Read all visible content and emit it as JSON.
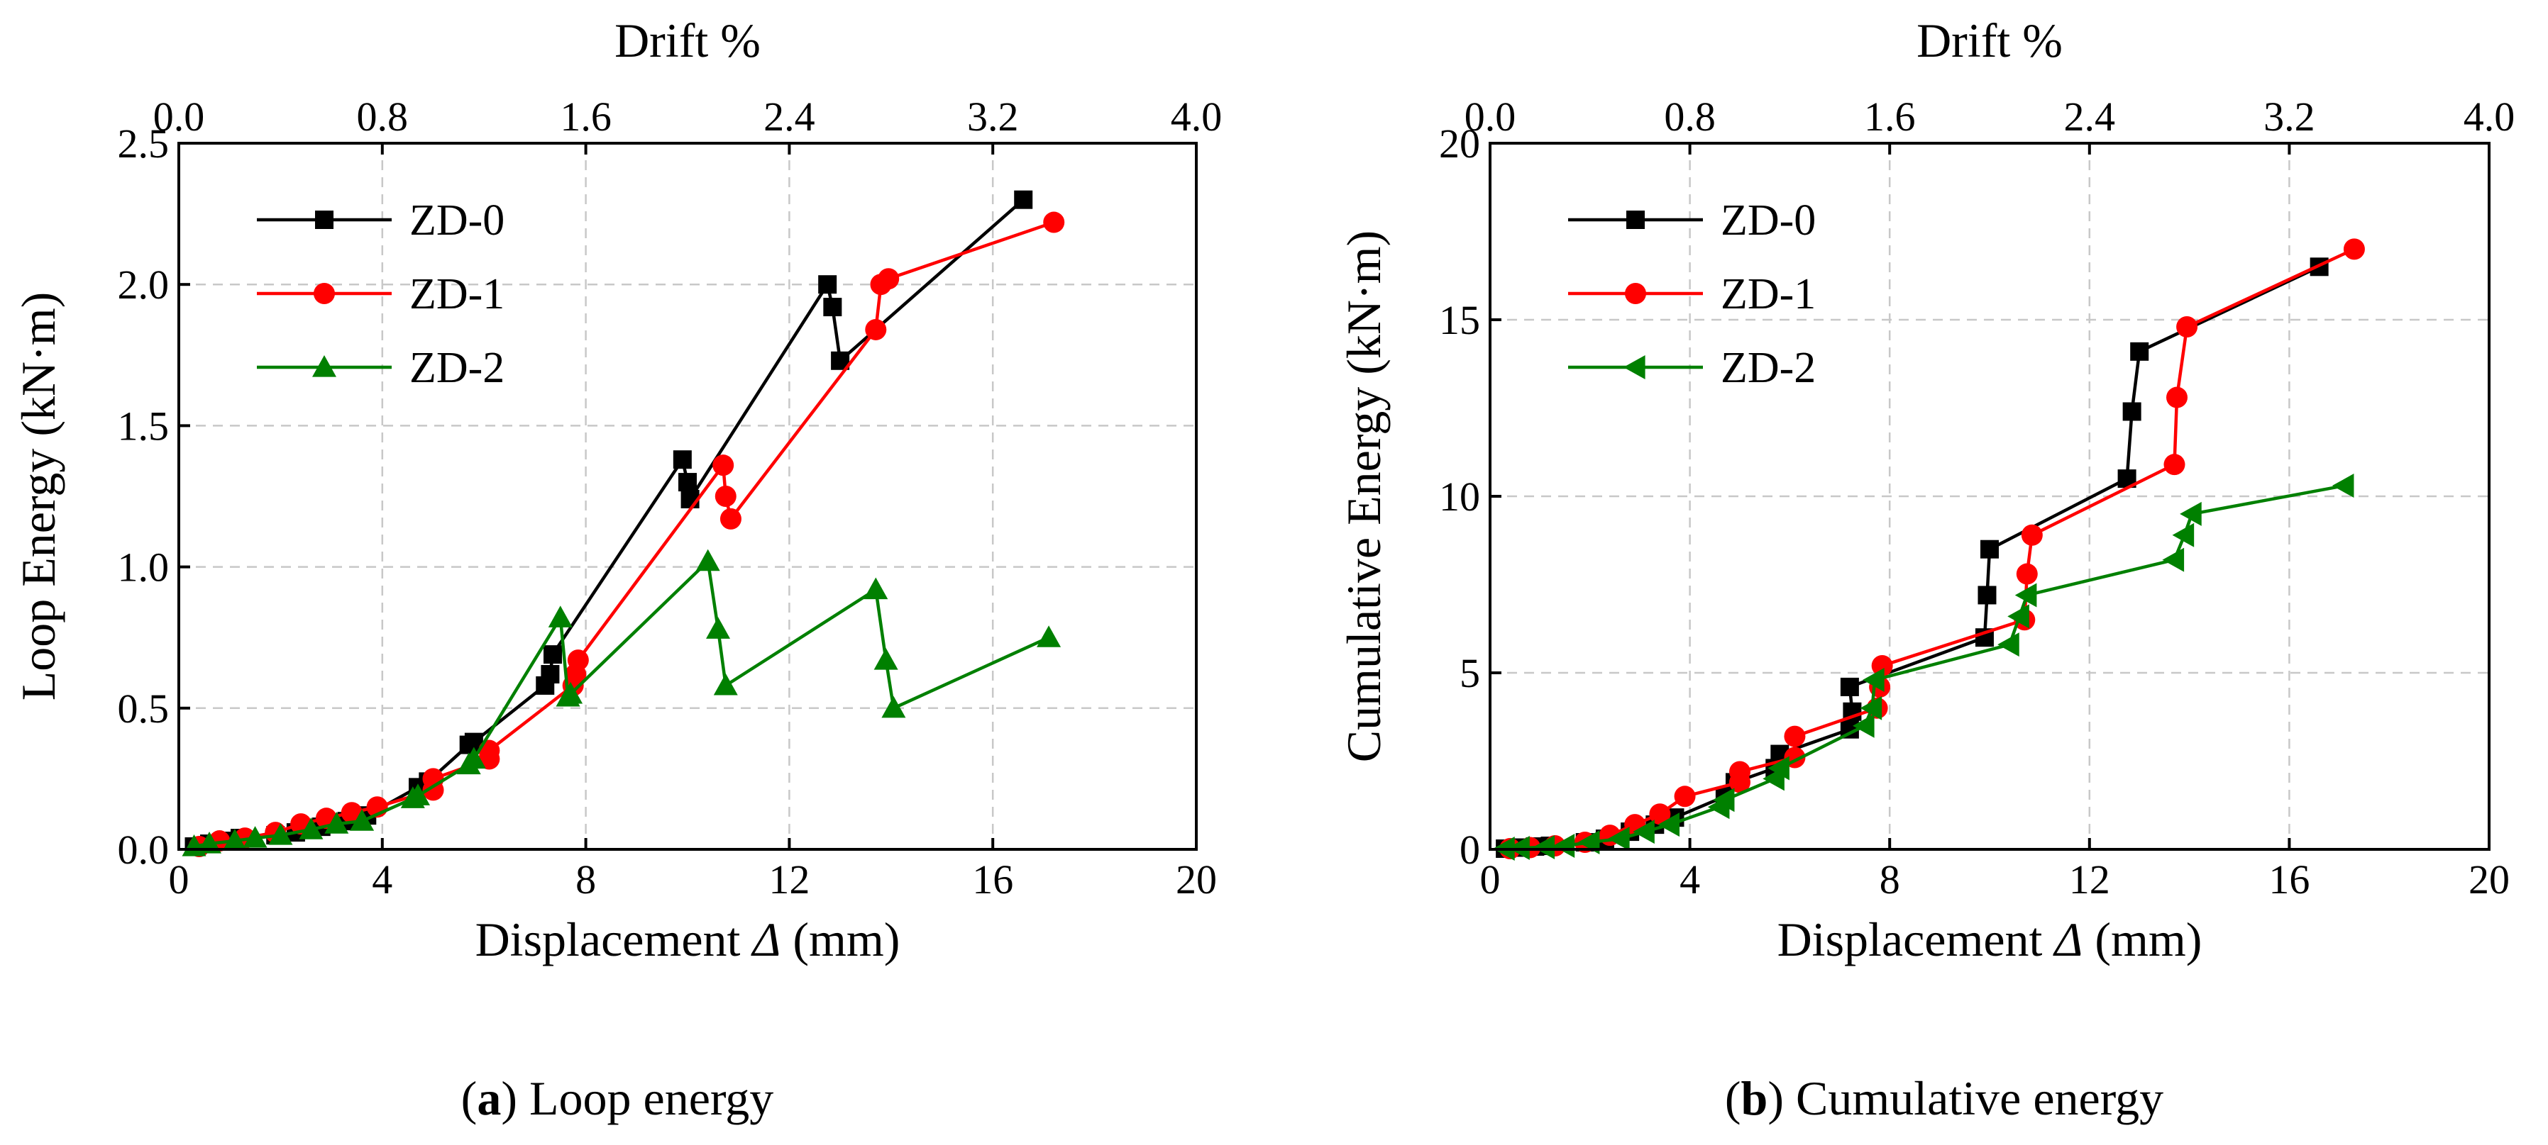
{
  "chart_data": [
    {
      "type": "line",
      "id": "loop",
      "caption_letter": "a",
      "caption_text": " Loop energy",
      "xlabel_main": "Displacement ",
      "xlabel_sym": "Δ",
      "xlabel_unit": " (mm)",
      "ylabel": "Loop Energy (kN·m)",
      "x2label": "Drift %",
      "xlim": [
        0,
        20
      ],
      "ylim": [
        0,
        2.5
      ],
      "x2lim": [
        0,
        4.0
      ],
      "xticks": [
        0,
        4,
        8,
        12,
        16,
        20
      ],
      "xtick_labels": [
        "0",
        "4",
        "8",
        "12",
        "16",
        "20"
      ],
      "yticks": [
        0,
        0.5,
        1.0,
        1.5,
        2.0,
        2.5
      ],
      "ytick_labels": [
        "0.0",
        "0.5",
        "1.0",
        "1.5",
        "2.0",
        "2.5"
      ],
      "x2ticks": [
        0,
        0.8,
        1.6,
        2.4,
        3.2,
        4.0
      ],
      "x2tick_labels": [
        "0.0",
        "0.8",
        "1.6",
        "2.4",
        "3.2",
        "4.0"
      ],
      "grid": true,
      "legend_position": "top-left",
      "series": [
        {
          "name": "ZD-0",
          "color": "#000000",
          "marker": "square",
          "x": [
            0.3,
            0.6,
            0.9,
            1.2,
            1.9,
            2.3,
            2.8,
            3.3,
            3.7,
            4.7,
            4.9,
            5.7,
            5.8,
            7.2,
            7.3,
            7.35,
            9.9,
            10.0,
            10.05,
            12.75,
            12.85,
            13.0,
            16.6
          ],
          "y": [
            0.01,
            0.02,
            0.03,
            0.04,
            0.05,
            0.06,
            0.08,
            0.1,
            0.12,
            0.22,
            0.24,
            0.37,
            0.38,
            0.58,
            0.62,
            0.69,
            1.38,
            1.3,
            1.24,
            2.0,
            1.92,
            1.73,
            2.3
          ]
        },
        {
          "name": "ZD-1",
          "color": "#ff0000",
          "marker": "circle",
          "x": [
            0.4,
            0.8,
            1.3,
            1.9,
            2.4,
            2.9,
            3.4,
            3.9,
            5.0,
            5.0,
            6.1,
            6.1,
            7.75,
            7.8,
            7.85,
            10.7,
            10.75,
            10.85,
            13.7,
            13.8,
            13.95,
            17.2
          ],
          "y": [
            0.01,
            0.03,
            0.04,
            0.06,
            0.09,
            0.11,
            0.13,
            0.15,
            0.21,
            0.25,
            0.32,
            0.35,
            0.58,
            0.62,
            0.67,
            1.36,
            1.25,
            1.17,
            1.84,
            2.0,
            2.02,
            2.22
          ]
        },
        {
          "name": "ZD-2",
          "color": "#008000",
          "marker": "triangle",
          "x": [
            0.3,
            0.6,
            1.1,
            1.5,
            2.0,
            2.6,
            3.1,
            3.6,
            4.6,
            4.7,
            5.7,
            5.8,
            7.5,
            7.65,
            7.7,
            10.4,
            10.6,
            10.75,
            13.7,
            13.9,
            14.05,
            17.1
          ],
          "y": [
            0.01,
            0.02,
            0.03,
            0.04,
            0.05,
            0.07,
            0.09,
            0.1,
            0.18,
            0.19,
            0.3,
            0.32,
            0.82,
            0.54,
            0.55,
            1.02,
            0.78,
            0.58,
            0.92,
            0.67,
            0.5,
            0.75
          ]
        }
      ]
    },
    {
      "type": "line",
      "id": "cumulative",
      "caption_letter": "b",
      "caption_text": " Cumulative energy",
      "xlabel_main": "Displacement ",
      "xlabel_sym": "Δ",
      "xlabel_unit": " (mm)",
      "ylabel": "Cumulative Energy (kN·m)",
      "x2label": "Drift %",
      "xlim": [
        0,
        20
      ],
      "ylim": [
        0,
        20
      ],
      "x2lim": [
        0,
        4.0
      ],
      "xticks": [
        0,
        4,
        8,
        12,
        16,
        20
      ],
      "xtick_labels": [
        "0",
        "4",
        "8",
        "12",
        "16",
        "20"
      ],
      "yticks": [
        0,
        5,
        10,
        15,
        20
      ],
      "ytick_labels": [
        "0",
        "5",
        "10",
        "15",
        "20"
      ],
      "x2ticks": [
        0,
        0.8,
        1.6,
        2.4,
        3.2,
        4.0
      ],
      "x2tick_labels": [
        "0.0",
        "0.8",
        "1.6",
        "2.4",
        "3.2",
        "4.0"
      ],
      "grid": true,
      "legend_position": "top-left",
      "series": [
        {
          "name": "ZD-0",
          "color": "#000000",
          "marker": "square",
          "x": [
            0.3,
            0.6,
            0.9,
            1.2,
            1.9,
            2.3,
            2.8,
            3.3,
            3.7,
            4.7,
            4.9,
            5.7,
            5.8,
            7.2,
            7.25,
            7.2,
            9.9,
            9.95,
            10.0,
            12.75,
            12.85,
            13.0,
            16.6
          ],
          "y": [
            0.02,
            0.05,
            0.08,
            0.1,
            0.2,
            0.3,
            0.5,
            0.7,
            0.9,
            1.5,
            1.9,
            2.3,
            2.7,
            3.4,
            3.9,
            4.6,
            6.0,
            7.2,
            8.5,
            10.5,
            12.4,
            14.1,
            16.5
          ]
        },
        {
          "name": "ZD-1",
          "color": "#ff0000",
          "marker": "circle",
          "x": [
            0.4,
            0.8,
            1.3,
            1.9,
            2.4,
            2.9,
            3.4,
            3.9,
            5.0,
            5.0,
            6.1,
            6.1,
            7.75,
            7.8,
            7.85,
            10.7,
            10.75,
            10.85,
            13.7,
            13.75,
            13.95,
            17.3
          ],
          "y": [
            0.02,
            0.05,
            0.1,
            0.2,
            0.4,
            0.7,
            1.0,
            1.5,
            1.9,
            2.2,
            2.6,
            3.2,
            4.0,
            4.6,
            5.2,
            6.5,
            7.8,
            8.9,
            10.9,
            12.8,
            14.8,
            17.0
          ]
        },
        {
          "name": "ZD-2",
          "color": "#008000",
          "marker": "triangle-left",
          "x": [
            0.3,
            0.6,
            1.1,
            1.5,
            2.0,
            2.6,
            3.1,
            3.6,
            4.6,
            4.7,
            5.7,
            5.8,
            7.5,
            7.65,
            7.7,
            10.4,
            10.6,
            10.75,
            13.7,
            13.9,
            14.05,
            17.1
          ],
          "y": [
            0.02,
            0.04,
            0.06,
            0.1,
            0.2,
            0.3,
            0.5,
            0.7,
            1.2,
            1.4,
            2.0,
            2.3,
            3.5,
            4.0,
            4.8,
            5.8,
            6.6,
            7.2,
            8.2,
            8.9,
            9.5,
            10.3
          ]
        }
      ]
    }
  ]
}
